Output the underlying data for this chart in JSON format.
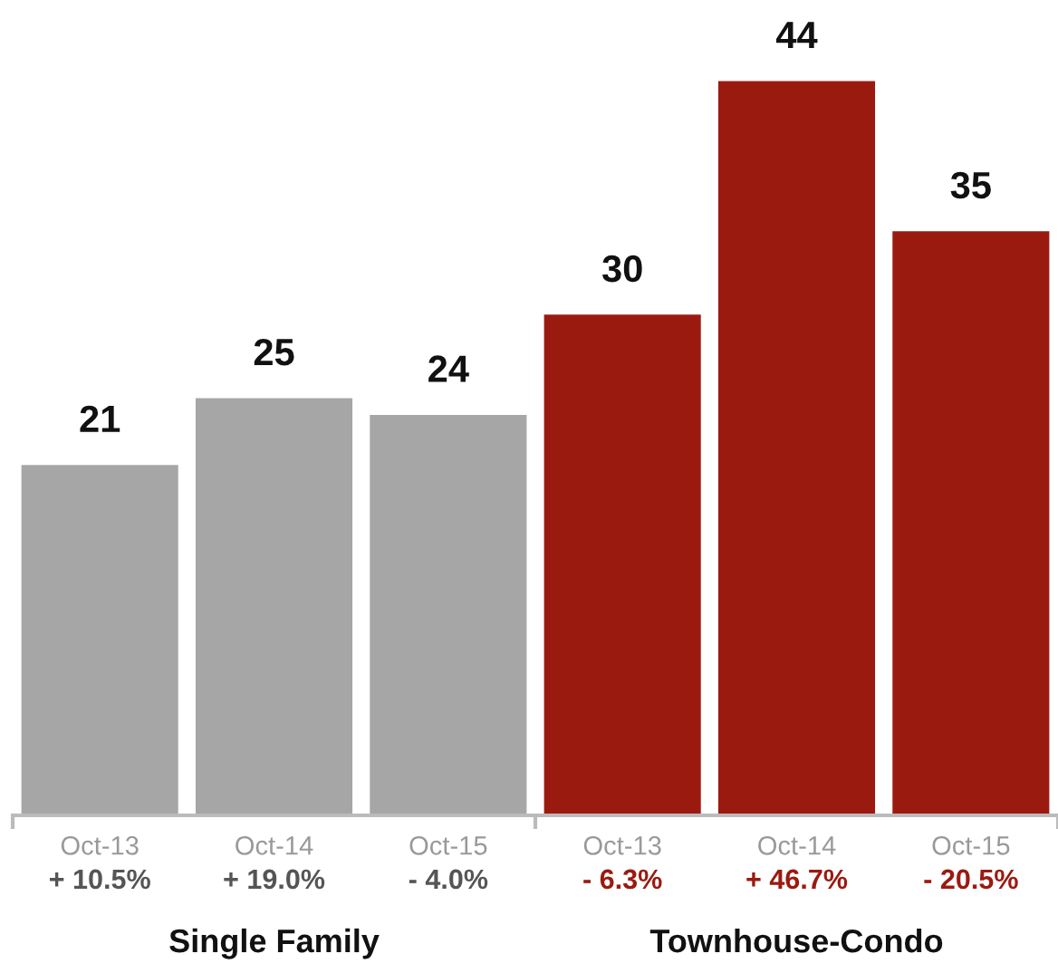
{
  "chart_data": {
    "type": "bar",
    "categories": [
      "Oct-13",
      "Oct-14",
      "Oct-15",
      "Oct-13",
      "Oct-14",
      "Oct-15"
    ],
    "values": [
      21,
      25,
      24,
      30,
      44,
      35
    ],
    "colors": [
      "#a6a6a6",
      "#a6a6a6",
      "#a6a6a6",
      "#9b1a10",
      "#9b1a10",
      "#9b1a10"
    ],
    "data_labels": true,
    "annotations": [
      "+ 10.5%",
      "+ 19.0%",
      "- 4.0%",
      "- 6.3%",
      "+ 46.7%",
      "- 20.5%",
      "Single Family",
      "Townhouse-Condo"
    ],
    "grid": false,
    "legend": false
  }
}
